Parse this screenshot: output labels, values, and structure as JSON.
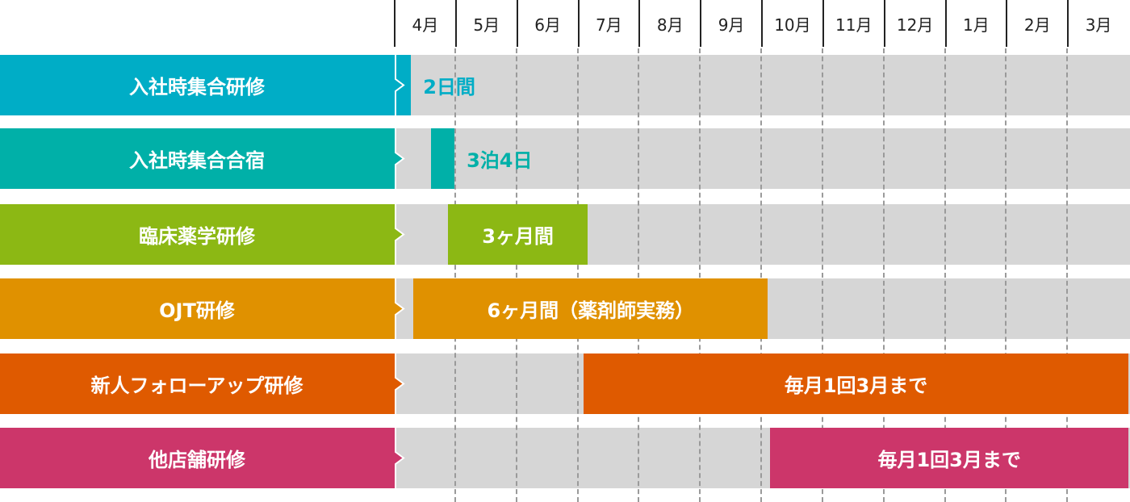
{
  "months": [
    "4月",
    "5月",
    "6月",
    "7月",
    "8月",
    "9月",
    "10月",
    "11月",
    "12月",
    "1月",
    "2月",
    "3月"
  ],
  "rows": [
    {
      "label": "入社時集合研修",
      "color": "#00adc6",
      "start": 0.04,
      "end": 0.28,
      "bar_text": "2日間",
      "text_outside": true
    },
    {
      "label": "入社時集合合宿",
      "color": "#00b0a8",
      "start": 0.6,
      "end": 0.99,
      "bar_text": "3泊4日",
      "text_outside": true
    },
    {
      "label": "臨床薬学研修",
      "color": "#8cb814",
      "start": 0.88,
      "end": 3.17,
      "bar_text": "3ヶ月間",
      "text_outside": false
    },
    {
      "label": "OJT研修",
      "color": "#e09100",
      "start": 0.32,
      "end": 6.11,
      "bar_text": "6ヶ月間（薬剤師実務）",
      "text_outside": false
    },
    {
      "label": "新人フォローアップ研修",
      "color": "#df5a00",
      "start": 3.1,
      "end": 12,
      "bar_text": "毎月1回3月まで",
      "text_outside": false
    },
    {
      "label": "他店舗研修",
      "color": "#cc366a",
      "start": 6.15,
      "end": 12,
      "bar_text": "毎月1回3月まで",
      "text_outside": false
    }
  ]
}
